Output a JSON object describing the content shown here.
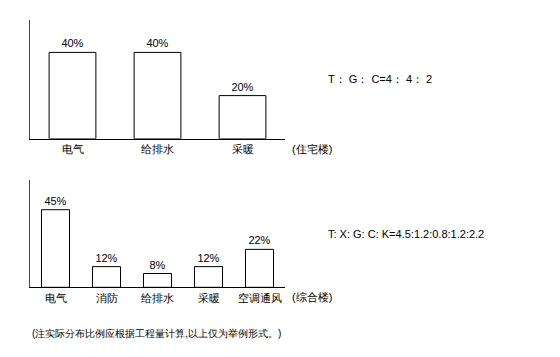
{
  "chart_data": [
    {
      "type": "bar",
      "categories": [
        "电气",
        "给排水",
        "采暖"
      ],
      "values": [
        40,
        40,
        20
      ],
      "value_labels": [
        "40%",
        "40%",
        "20%"
      ],
      "data_labels": true,
      "color": "#ffffff",
      "ylim": [
        0,
        55
      ],
      "grid": false,
      "tick_labels": "x",
      "xlabel": "(住宅楼)",
      "annotations": [
        "T： G： C=4： 4： 2"
      ]
    },
    {
      "type": "bar",
      "categories": [
        "电气",
        "消防",
        "给排水",
        "采暖",
        "空调通风"
      ],
      "values": [
        45,
        12,
        8,
        12,
        22
      ],
      "value_labels": [
        "45%",
        "12%",
        "8%",
        "12%",
        "22%"
      ],
      "data_labels": true,
      "color": "#ffffff",
      "ylim": [
        0,
        62
      ],
      "grid": false,
      "tick_labels": "x",
      "xlabel": "(综合楼)",
      "annotations": [
        "T: X: G: C: K=4.5:1.2:0.8:1.2:2.2",
        "(注实际分布比例应根据工程量计算,以上仅为举例形式。)"
      ]
    }
  ]
}
